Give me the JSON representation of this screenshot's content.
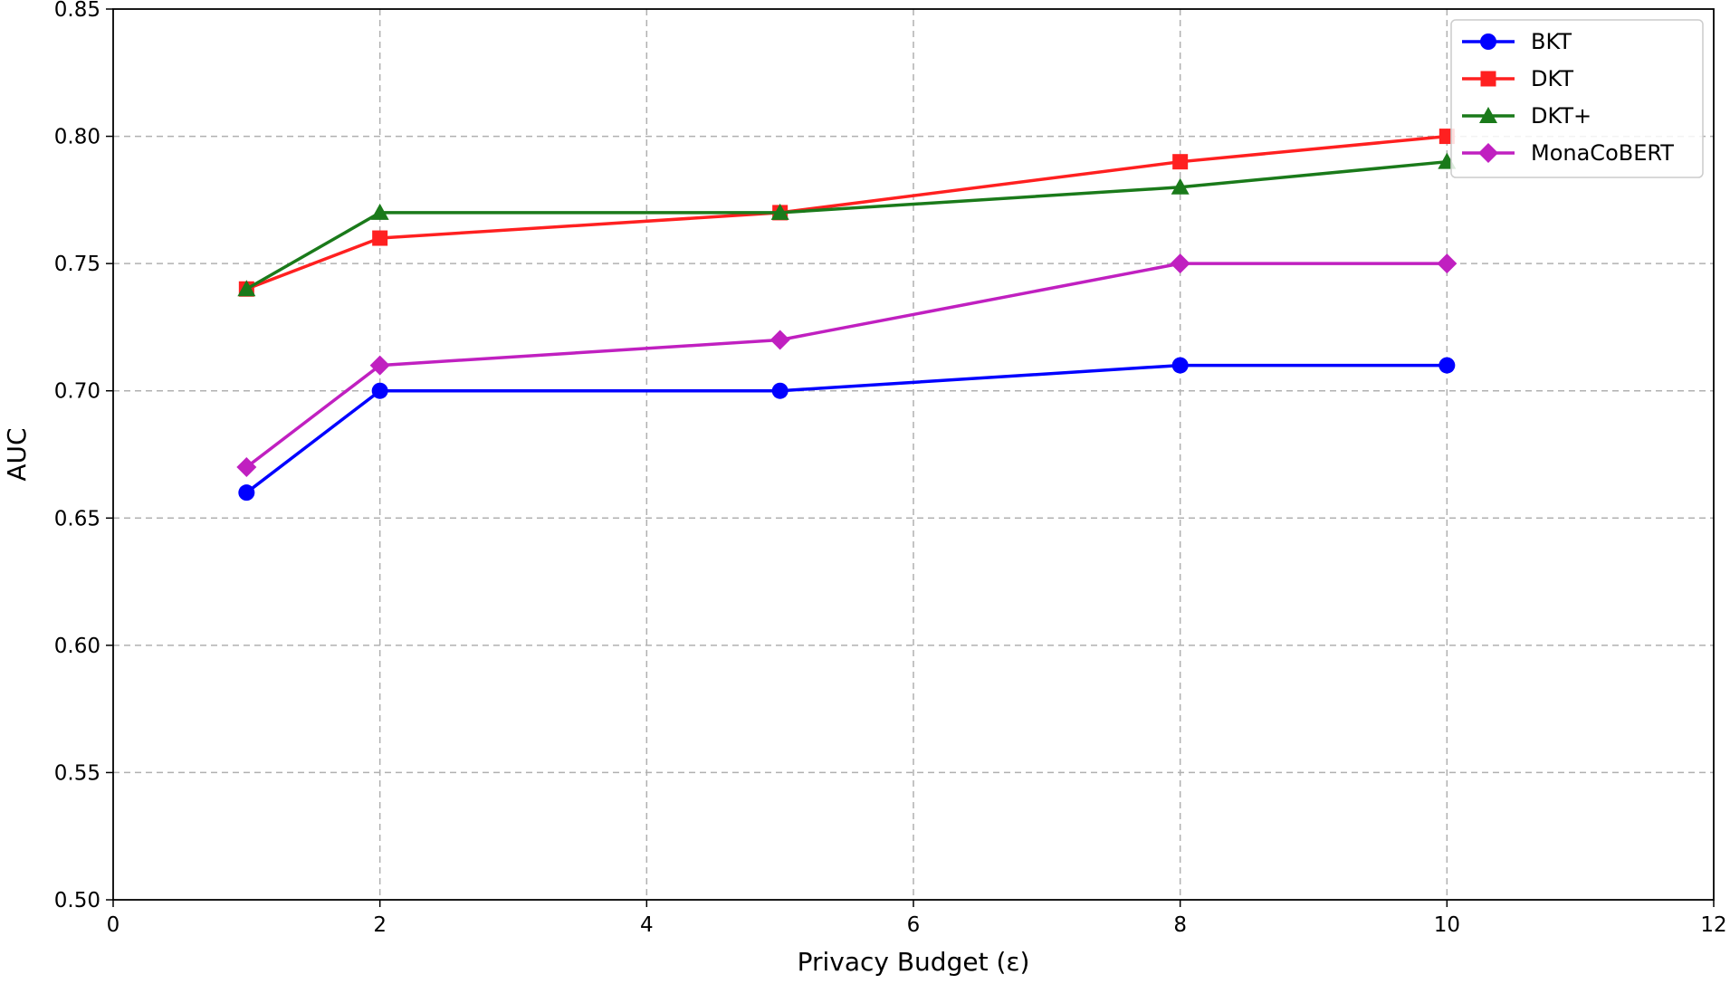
{
  "chart_data": {
    "type": "line",
    "title": "",
    "xlabel": "Privacy Budget (ε)",
    "ylabel": "AUC",
    "xlim": [
      0,
      12
    ],
    "ylim": [
      0.5,
      0.85
    ],
    "xticks": [
      0,
      2,
      4,
      6,
      8,
      10,
      12
    ],
    "yticks": [
      0.5,
      0.55,
      0.6,
      0.65,
      0.7,
      0.75,
      0.8,
      0.85
    ],
    "xtick_labels": [
      "0",
      "2",
      "4",
      "6",
      "8",
      "10",
      "12"
    ],
    "ytick_labels": [
      "0.50",
      "0.55",
      "0.60",
      "0.65",
      "0.70",
      "0.75",
      "0.80",
      "0.85"
    ],
    "grid": true,
    "legend_position": "top-right",
    "x": [
      1,
      2,
      5,
      8,
      10
    ],
    "series": [
      {
        "name": "BKT",
        "values": [
          0.66,
          0.7,
          0.7,
          0.71,
          0.71
        ],
        "color": "#0000ff",
        "marker": "circle"
      },
      {
        "name": "DKT",
        "values": [
          0.74,
          0.76,
          0.77,
          0.79,
          0.8
        ],
        "color": "#ff2020",
        "marker": "square"
      },
      {
        "name": "DKT+",
        "values": [
          0.74,
          0.77,
          0.77,
          0.78,
          0.79
        ],
        "color": "#1a7a1a",
        "marker": "triangle"
      },
      {
        "name": "MonaCoBERT",
        "values": [
          0.67,
          0.71,
          0.72,
          0.75,
          0.75
        ],
        "color": "#c020c0",
        "marker": "diamond"
      }
    ]
  }
}
